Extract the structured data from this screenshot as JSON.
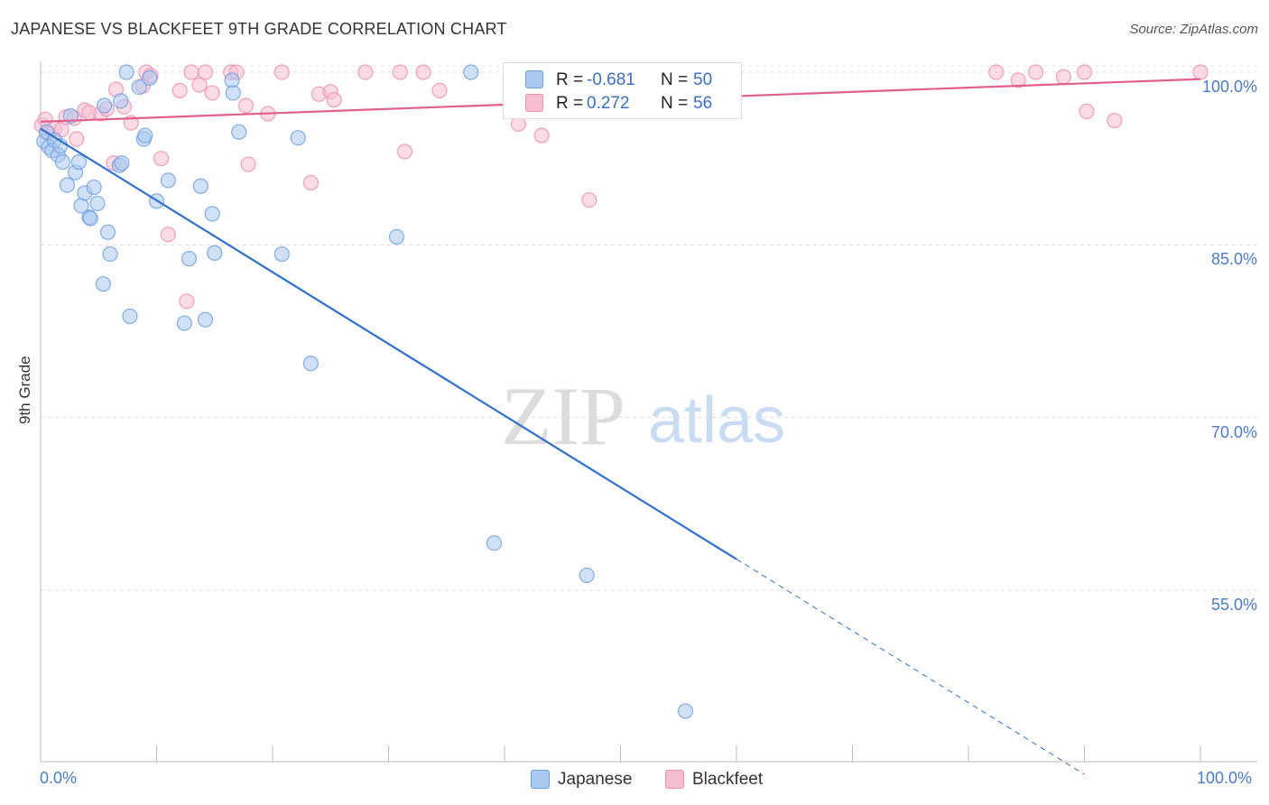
{
  "header": {
    "title": "JAPANESE VS BLACKFEET 9TH GRADE CORRELATION CHART",
    "source": "Source: ZipAtlas.com"
  },
  "watermark": {
    "zip": "ZIP",
    "atlas": "atlas"
  },
  "colors": {
    "japanese": "#6f9fe0",
    "japanese_fill": "#aac8f0",
    "japanese_line": "#2f6fcf",
    "blackfeet": "#f08fb0",
    "blackfeet_fill": "#f7bdd1",
    "blackfeet_line": "#e0608a",
    "tick_text": "#4a7bc8"
  },
  "stats": [
    {
      "r_label": "R =",
      "r_value": "-0.681",
      "n_label": "N =",
      "n_value": "50"
    },
    {
      "r_label": "R =",
      "r_value": "0.272",
      "n_label": "N =",
      "n_value": "56"
    }
  ],
  "legend": [
    "Japanese",
    "Blackfeet"
  ],
  "chart_data": {
    "type": "scatter",
    "title": "JAPANESE VS BLACKFEET 9TH GRADE CORRELATION CHART",
    "xlabel": "",
    "ylabel": "9th Grade",
    "xlim": [
      0,
      100
    ],
    "ylim": [
      38,
      101
    ],
    "x_tick_labels": [
      "0.0%",
      "100.0%"
    ],
    "y_tick_labels": [
      "100.0%",
      "85.0%",
      "70.0%",
      "55.0%"
    ],
    "y_ticks": [
      100,
      85,
      70,
      55
    ],
    "grid": "horizontal dashed",
    "series": [
      {
        "name": "Japanese",
        "points": [
          [
            0.3,
            94.0
          ],
          [
            0.5,
            94.8
          ],
          [
            0.7,
            93.5
          ],
          [
            1.0,
            93.2
          ],
          [
            1.2,
            94.1
          ],
          [
            1.5,
            92.8
          ],
          [
            1.7,
            93.6
          ],
          [
            1.9,
            92.2
          ],
          [
            2.3,
            90.2
          ],
          [
            2.6,
            96.2
          ],
          [
            3.0,
            91.3
          ],
          [
            3.3,
            92.2
          ],
          [
            3.5,
            88.4
          ],
          [
            3.8,
            89.5
          ],
          [
            4.2,
            87.4
          ],
          [
            4.3,
            87.3
          ],
          [
            4.6,
            90.0
          ],
          [
            4.9,
            88.6
          ],
          [
            5.4,
            81.6
          ],
          [
            5.5,
            97.1
          ],
          [
            5.8,
            86.1
          ],
          [
            6.0,
            84.2
          ],
          [
            6.8,
            91.9
          ],
          [
            6.9,
            97.5
          ],
          [
            7.0,
            92.1
          ],
          [
            7.4,
            100.0
          ],
          [
            7.7,
            78.8
          ],
          [
            8.5,
            98.7
          ],
          [
            8.9,
            94.2
          ],
          [
            9.0,
            94.5
          ],
          [
            9.4,
            99.5
          ],
          [
            10.0,
            88.8
          ],
          [
            11.0,
            90.6
          ],
          [
            12.4,
            78.2
          ],
          [
            12.8,
            83.8
          ],
          [
            13.8,
            90.1
          ],
          [
            14.2,
            78.5
          ],
          [
            14.8,
            87.7
          ],
          [
            15.0,
            84.3
          ],
          [
            16.5,
            99.3
          ],
          [
            16.6,
            98.2
          ],
          [
            17.1,
            94.8
          ],
          [
            20.8,
            84.2
          ],
          [
            22.2,
            94.3
          ],
          [
            23.3,
            74.7
          ],
          [
            30.7,
            85.7
          ],
          [
            37.1,
            100.0
          ],
          [
            39.1,
            59.1
          ],
          [
            47.1,
            56.3
          ],
          [
            55.6,
            44.5
          ]
        ]
      },
      {
        "name": "Blackfeet",
        "points": [
          [
            0.1,
            95.4
          ],
          [
            0.4,
            95.9
          ],
          [
            0.7,
            94.7
          ],
          [
            1.2,
            95.1
          ],
          [
            1.8,
            95.0
          ],
          [
            2.2,
            96.1
          ],
          [
            2.9,
            96.0
          ],
          [
            3.1,
            94.2
          ],
          [
            3.8,
            96.7
          ],
          [
            4.2,
            96.5
          ],
          [
            5.2,
            96.4
          ],
          [
            5.7,
            96.8
          ],
          [
            6.3,
            92.1
          ],
          [
            6.5,
            98.5
          ],
          [
            7.2,
            97.0
          ],
          [
            7.8,
            95.6
          ],
          [
            8.8,
            98.8
          ],
          [
            9.1,
            100.0
          ],
          [
            9.5,
            99.7
          ],
          [
            10.4,
            92.5
          ],
          [
            11.0,
            85.9
          ],
          [
            12.0,
            98.4
          ],
          [
            12.6,
            80.1
          ],
          [
            13.0,
            100.0
          ],
          [
            13.7,
            98.9
          ],
          [
            14.2,
            100.0
          ],
          [
            14.8,
            98.2
          ],
          [
            16.4,
            100.0
          ],
          [
            16.9,
            100.0
          ],
          [
            17.7,
            97.1
          ],
          [
            17.9,
            92.0
          ],
          [
            19.6,
            96.4
          ],
          [
            20.8,
            100.0
          ],
          [
            23.3,
            90.4
          ],
          [
            24.0,
            98.1
          ],
          [
            25.0,
            98.3
          ],
          [
            25.3,
            97.6
          ],
          [
            28.0,
            100.0
          ],
          [
            31.0,
            100.0
          ],
          [
            31.4,
            93.1
          ],
          [
            33.0,
            100.0
          ],
          [
            34.4,
            98.4
          ],
          [
            40.8,
            100.0
          ],
          [
            41.2,
            95.5
          ],
          [
            43.2,
            94.5
          ],
          [
            46.7,
            100.0
          ],
          [
            47.3,
            88.9
          ],
          [
            50.0,
            100.0
          ],
          [
            82.4,
            100.0
          ],
          [
            84.3,
            99.3
          ],
          [
            85.8,
            100.0
          ],
          [
            88.2,
            99.6
          ],
          [
            90.0,
            100.0
          ],
          [
            90.2,
            96.6
          ],
          [
            92.6,
            95.8
          ],
          [
            100.0,
            100.0
          ]
        ]
      }
    ],
    "trend_lines": [
      {
        "series": "Japanese",
        "x_start": 0,
        "y_start": 95.1,
        "x_solid_end": 60,
        "x_dashed_end": 90,
        "y_dashed_end": 39.0
      },
      {
        "series": "Blackfeet",
        "x_start": 0,
        "y_start": 95.7,
        "x_end": 100,
        "y_end": 99.4
      }
    ]
  }
}
